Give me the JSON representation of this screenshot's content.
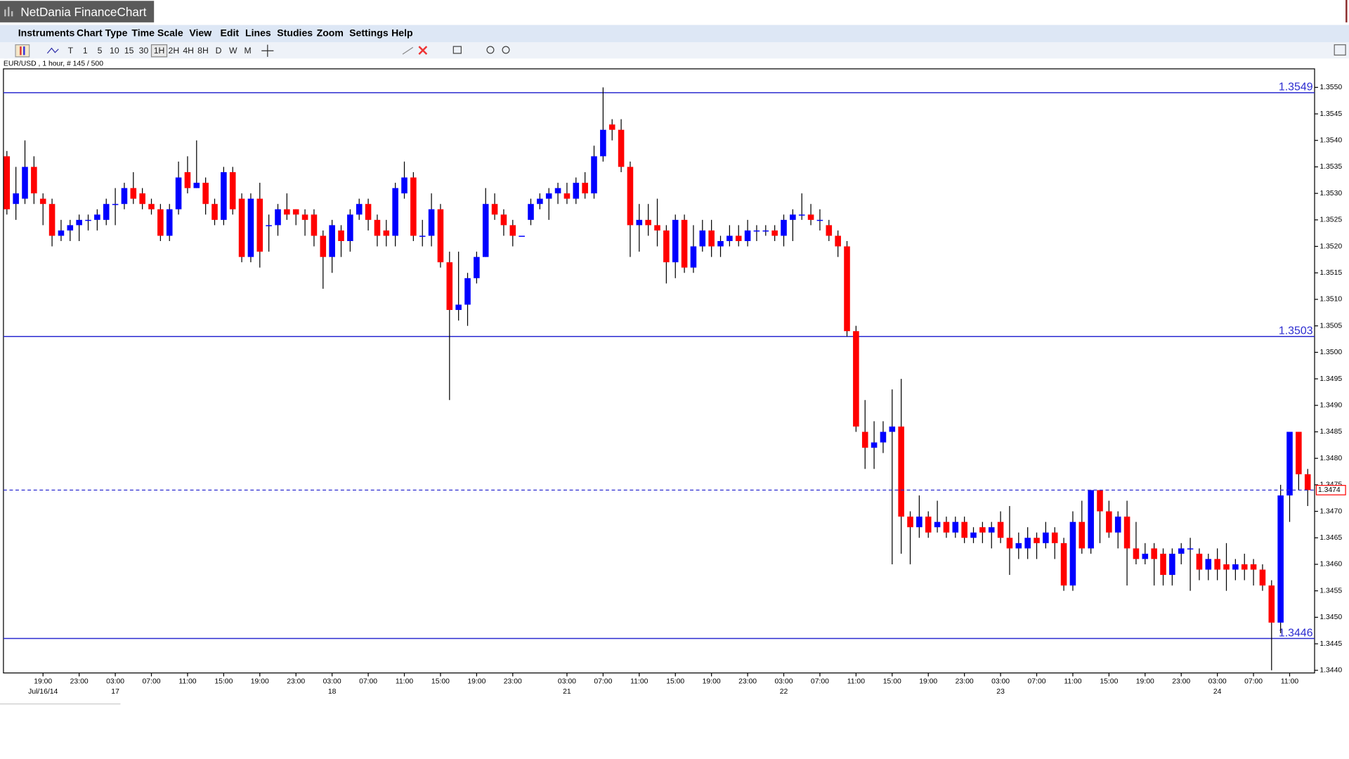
{
  "window": {
    "title": "NetDania FinanceChart"
  },
  "menu": [
    "Instruments",
    "Chart Type",
    "Time Scale",
    "View",
    "Edit",
    "Lines",
    "Studies",
    "Zoom",
    "Settings",
    "Help"
  ],
  "toolbar": [
    "T",
    "1",
    "5",
    "10",
    "15",
    "30",
    "1H",
    "2H",
    "4H",
    "8H",
    "D",
    "W",
    "M"
  ],
  "info": "EUR/USD , 1 hour, # 145 / 500",
  "chart_data": {
    "type": "candlestick",
    "up_color": "#0000ff",
    "down_color": "#ff0000",
    "wick_color": "#000000",
    "level_color": "#2b2bd0",
    "last_color": "#ff0000",
    "ylim": [
      1.34395,
      1.35535
    ],
    "yticks": [
      {
        "value": 1.344,
        "label": "1.3440"
      },
      {
        "value": 1.3445,
        "label": "1.3445"
      },
      {
        "value": 1.345,
        "label": "1.3450"
      },
      {
        "value": 1.3455,
        "label": "1.3455"
      },
      {
        "value": 1.346,
        "label": "1.3460"
      },
      {
        "value": 1.3465,
        "label": "1.3465"
      },
      {
        "value": 1.347,
        "label": "1.3470"
      },
      {
        "value": 1.3475,
        "label": "1.3475"
      },
      {
        "value": 1.348,
        "label": "1.3480"
      },
      {
        "value": 1.3485,
        "label": "1.3485"
      },
      {
        "value": 1.349,
        "label": "1.3490"
      },
      {
        "value": 1.3495,
        "label": "1.3495"
      },
      {
        "value": 1.35,
        "label": "1.3500"
      },
      {
        "value": 1.3505,
        "label": "1.3505"
      },
      {
        "value": 1.351,
        "label": "1.3510"
      },
      {
        "value": 1.3515,
        "label": "1.3515"
      },
      {
        "value": 1.352,
        "label": "1.3520"
      },
      {
        "value": 1.3525,
        "label": "1.3525"
      },
      {
        "value": 1.353,
        "label": "1.3530"
      },
      {
        "value": 1.3535,
        "label": "1.3535"
      },
      {
        "value": 1.354,
        "label": "1.3540"
      },
      {
        "value": 1.3545,
        "label": "1.3545"
      },
      {
        "value": 1.355,
        "label": "1.3550"
      }
    ],
    "levels": [
      1.3549,
      1.3503,
      1.3446
    ],
    "last_price": 1.3474,
    "categories": [
      null,
      null,
      null,
      null,
      "19:00",
      null,
      null,
      null,
      "23:00",
      null,
      null,
      null,
      "03:00",
      null,
      null,
      null,
      "07:00",
      null,
      null,
      null,
      "11:00",
      null,
      null,
      null,
      "15:00",
      null,
      null,
      null,
      "19:00",
      null,
      null,
      null,
      "23:00",
      null,
      null,
      null,
      "03:00",
      null,
      null,
      null,
      "07:00",
      null,
      null,
      null,
      "11:00",
      null,
      null,
      null,
      "15:00",
      null,
      null,
      null,
      "19:00",
      null,
      null,
      null,
      "23:00",
      null,
      null,
      null,
      null,
      null,
      "03:00",
      null,
      null,
      null,
      "07:00",
      null,
      null,
      null,
      "11:00",
      null,
      null,
      null,
      "15:00",
      null,
      null,
      null,
      "19:00",
      null,
      null,
      null,
      "23:00",
      null,
      null,
      null,
      "03:00",
      null,
      null,
      null,
      "07:00",
      null,
      null,
      null,
      "11:00",
      null,
      null,
      null,
      "15:00",
      null,
      null,
      null,
      "19:00",
      null,
      null,
      null,
      "23:00",
      null,
      null,
      null,
      "03:00",
      null,
      null,
      null,
      "07:00",
      null,
      null,
      null,
      "11:00",
      null,
      null,
      null,
      "15:00",
      null,
      null,
      null,
      "19:00",
      null,
      null,
      null,
      "23:00",
      null,
      null,
      null,
      "03:00",
      null,
      null,
      null,
      "07:00",
      null,
      null,
      null,
      "11:00",
      null,
      null
    ],
    "dates": [
      null,
      null,
      null,
      null,
      "Jul/16/14",
      null,
      null,
      null,
      null,
      null,
      null,
      null,
      "17",
      null,
      null,
      null,
      null,
      null,
      null,
      null,
      null,
      null,
      null,
      null,
      null,
      null,
      null,
      null,
      null,
      null,
      null,
      null,
      null,
      null,
      null,
      null,
      "18",
      null,
      null,
      null,
      null,
      null,
      null,
      null,
      null,
      null,
      null,
      null,
      null,
      null,
      null,
      null,
      null,
      null,
      null,
      null,
      null,
      null,
      null,
      null,
      null,
      null,
      "21",
      null,
      null,
      null,
      null,
      null,
      null,
      null,
      null,
      null,
      null,
      null,
      null,
      null,
      null,
      null,
      null,
      null,
      null,
      null,
      null,
      null,
      null,
      null,
      "22",
      null,
      null,
      null,
      null,
      null,
      null,
      null,
      null,
      null,
      null,
      null,
      null,
      null,
      null,
      null,
      null,
      null,
      null,
      null,
      null,
      null,
      null,
      null,
      "23",
      null,
      null,
      null,
      null,
      null,
      null,
      null,
      null,
      null,
      null,
      null,
      null,
      null,
      null,
      null,
      null,
      null,
      null,
      null,
      null,
      null,
      null,
      null,
      "24",
      null,
      null,
      null,
      null,
      null,
      null,
      null,
      null,
      null,
      null
    ],
    "open": [
      1.3537,
      1.3528,
      1.3529,
      1.3535,
      1.3529,
      1.3528,
      1.3522,
      1.3523,
      1.3524,
      1.3525,
      1.3525,
      1.3525,
      1.3528,
      1.3528,
      1.3531,
      1.353,
      1.3528,
      1.3527,
      1.3522,
      1.3527,
      1.3534,
      1.3531,
      1.3532,
      1.3528,
      1.3525,
      1.3534,
      1.3529,
      1.3518,
      1.3529,
      1.3524,
      1.3524,
      1.3527,
      1.3527,
      1.3526,
      1.3526,
      1.3522,
      1.3518,
      1.3523,
      1.3521,
      1.3526,
      1.3528,
      1.3525,
      1.3523,
      1.3522,
      1.353,
      1.3533,
      1.3522,
      1.3522,
      1.3527,
      1.3517,
      1.3508,
      1.3509,
      1.3514,
      1.3518,
      1.3528,
      1.3526,
      1.3524,
      1.3522,
      1.3525,
      1.3528,
      1.3529,
      1.353,
      1.353,
      1.3529,
      1.3532,
      1.353,
      1.3537,
      1.3543,
      1.3542,
      1.3535,
      1.3524,
      1.3525,
      1.3524,
      1.3523,
      1.3517,
      1.3525,
      1.3516,
      1.352,
      1.3523,
      1.352,
      1.3521,
      1.3522,
      1.3521,
      1.3523,
      1.3523,
      1.3523,
      1.3522,
      1.3525,
      1.3526,
      1.3526,
      1.3525,
      1.3524,
      1.3522,
      1.352,
      1.3504,
      1.3485,
      1.3482,
      1.3483,
      1.3485,
      1.3486,
      1.3469,
      1.3467,
      1.3469,
      1.3467,
      1.3468,
      1.3466,
      1.3468,
      1.3465,
      1.3467,
      1.3466,
      1.3468,
      1.3465,
      1.3463,
      1.3463,
      1.3465,
      1.3464,
      1.3466,
      1.3464,
      1.3456,
      1.3468,
      1.3463,
      1.3474,
      1.347,
      1.3466,
      1.3469,
      1.3463,
      1.3461,
      1.3463,
      1.3462,
      1.3458,
      1.3462,
      1.3463,
      1.3462,
      1.3459,
      1.3461,
      1.346,
      1.3459,
      1.346,
      1.346,
      1.3459,
      1.3456,
      1.3449,
      1.3473,
      1.3485,
      1.3477
    ],
    "high": [
      1.3538,
      1.3535,
      1.354,
      1.3537,
      1.353,
      1.3529,
      1.3525,
      1.3525,
      1.3526,
      1.3526,
      1.3527,
      1.3529,
      1.3531,
      1.3532,
      1.3534,
      1.3531,
      1.3529,
      1.3528,
      1.3528,
      1.3536,
      1.3537,
      1.354,
      1.3533,
      1.3529,
      1.3535,
      1.3535,
      1.353,
      1.353,
      1.3532,
      1.3526,
      1.3528,
      1.353,
      1.3527,
      1.3527,
      1.3527,
      1.3523,
      1.3525,
      1.3524,
      1.3527,
      1.3529,
      1.3529,
      1.3526,
      1.3525,
      1.3532,
      1.3536,
      1.3534,
      1.3525,
      1.353,
      1.3528,
      1.3519,
      1.3519,
      1.3515,
      1.3519,
      1.3531,
      1.353,
      1.3527,
      1.3525,
      1.3522,
      1.3529,
      1.353,
      1.3531,
      1.3532,
      1.3532,
      1.3533,
      1.3534,
      1.3539,
      1.355,
      1.3544,
      1.3544,
      1.3536,
      1.3528,
      1.3528,
      1.3529,
      1.3524,
      1.3526,
      1.3526,
      1.3524,
      1.3525,
      1.3525,
      1.3522,
      1.3524,
      1.3524,
      1.3525,
      1.3524,
      1.3524,
      1.3524,
      1.3526,
      1.3527,
      1.353,
      1.3528,
      1.3527,
      1.3525,
      1.3523,
      1.3521,
      1.3505,
      1.3491,
      1.3487,
      1.3487,
      1.3493,
      1.3495,
      1.347,
      1.3473,
      1.347,
      1.3472,
      1.3469,
      1.3469,
      1.3469,
      1.3467,
      1.3468,
      1.3468,
      1.347,
      1.3471,
      1.3466,
      1.3467,
      1.3466,
      1.3468,
      1.3467,
      1.3465,
      1.347,
      1.3472,
      1.3474,
      1.3474,
      1.3472,
      1.347,
      1.3472,
      1.3468,
      1.3464,
      1.3464,
      1.3463,
      1.3463,
      1.3464,
      1.3465,
      1.3463,
      1.3462,
      1.3463,
      1.3464,
      1.3461,
      1.3462,
      1.3461,
      1.346,
      1.3457,
      1.3475,
      1.3485,
      1.3485,
      1.3478
    ],
    "low": [
      1.3526,
      1.3525,
      1.3528,
      1.3528,
      1.3524,
      1.352,
      1.3521,
      1.3521,
      1.3521,
      1.3523,
      1.3523,
      1.3524,
      1.3524,
      1.3527,
      1.3528,
      1.3527,
      1.3526,
      1.3521,
      1.3521,
      1.3526,
      1.353,
      1.3531,
      1.3526,
      1.3524,
      1.3524,
      1.3526,
      1.3517,
      1.3517,
      1.3516,
      1.3519,
      1.3522,
      1.3525,
      1.3524,
      1.3522,
      1.352,
      1.3512,
      1.3515,
      1.3518,
      1.3519,
      1.3525,
      1.3523,
      1.352,
      1.352,
      1.352,
      1.3529,
      1.3521,
      1.352,
      1.352,
      1.3516,
      1.3491,
      1.3506,
      1.3505,
      1.3513,
      1.3518,
      1.3525,
      1.3522,
      1.352,
      1.3522,
      1.3524,
      1.3527,
      1.3525,
      1.3528,
      1.3528,
      1.3528,
      1.3529,
      1.3529,
      1.3536,
      1.354,
      1.3534,
      1.3518,
      1.3519,
      1.3522,
      1.352,
      1.3513,
      1.3514,
      1.3515,
      1.3515,
      1.3519,
      1.3518,
      1.3518,
      1.352,
      1.352,
      1.352,
      1.3521,
      1.3522,
      1.3521,
      1.352,
      1.3521,
      1.3525,
      1.3524,
      1.3523,
      1.3521,
      1.3518,
      1.3503,
      1.3485,
      1.3478,
      1.3478,
      1.3481,
      1.346,
      1.3462,
      1.346,
      1.3465,
      1.3465,
      1.3466,
      1.3465,
      1.3465,
      1.3464,
      1.3464,
      1.3464,
      1.3463,
      1.3464,
      1.3458,
      1.3461,
      1.3461,
      1.3461,
      1.3463,
      1.3461,
      1.3455,
      1.3455,
      1.3462,
      1.3462,
      1.3464,
      1.3465,
      1.3463,
      1.3456,
      1.346,
      1.346,
      1.3456,
      1.3456,
      1.3456,
      1.346,
      1.3455,
      1.3457,
      1.3457,
      1.3457,
      1.3455,
      1.3457,
      1.3457,
      1.3456,
      1.3455,
      1.344,
      1.3447,
      1.3468,
      1.3474,
      1.3471
    ],
    "close": [
      1.3527,
      1.353,
      1.3535,
      1.353,
      1.3528,
      1.3522,
      1.3523,
      1.3524,
      1.3525,
      1.3525,
      1.3526,
      1.3528,
      1.3528,
      1.3531,
      1.3529,
      1.3528,
      1.3527,
      1.3522,
      1.3527,
      1.3533,
      1.3531,
      1.3532,
      1.3528,
      1.3525,
      1.3534,
      1.3527,
      1.3518,
      1.3529,
      1.3519,
      1.3524,
      1.3527,
      1.3526,
      1.3526,
      1.3525,
      1.3522,
      1.3518,
      1.3524,
      1.3521,
      1.3526,
      1.3528,
      1.3525,
      1.3522,
      1.3522,
      1.3531,
      1.3533,
      1.3522,
      1.3522,
      1.3527,
      1.3517,
      1.3508,
      1.3509,
      1.3514,
      1.3518,
      1.3528,
      1.3526,
      1.3524,
      1.3522,
      1.3522,
      1.3528,
      1.3529,
      1.353,
      1.3531,
      1.3529,
      1.3532,
      1.353,
      1.3537,
      1.3542,
      1.3542,
      1.3535,
      1.3524,
      1.3525,
      1.3524,
      1.3523,
      1.3517,
      1.3525,
      1.3516,
      1.352,
      1.3523,
      1.352,
      1.3521,
      1.3522,
      1.3521,
      1.3523,
      1.3523,
      1.3523,
      1.3522,
      1.3525,
      1.3526,
      1.3526,
      1.3525,
      1.3525,
      1.3522,
      1.352,
      1.3504,
      1.3486,
      1.3482,
      1.3483,
      1.3485,
      1.3486,
      1.3469,
      1.3467,
      1.3469,
      1.3466,
      1.3468,
      1.3466,
      1.3468,
      1.3465,
      1.3466,
      1.3466,
      1.3467,
      1.3465,
      1.3463,
      1.3464,
      1.3465,
      1.3464,
      1.3466,
      1.3464,
      1.3456,
      1.3468,
      1.3463,
      1.3474,
      1.347,
      1.3466,
      1.3469,
      1.3463,
      1.3461,
      1.3462,
      1.3461,
      1.3458,
      1.3462,
      1.3463,
      1.3463,
      1.3459,
      1.3461,
      1.3459,
      1.3459,
      1.346,
      1.3459,
      1.3459,
      1.3456,
      1.3449,
      1.3473,
      1.3485,
      1.3477,
      1.3474
    ]
  }
}
